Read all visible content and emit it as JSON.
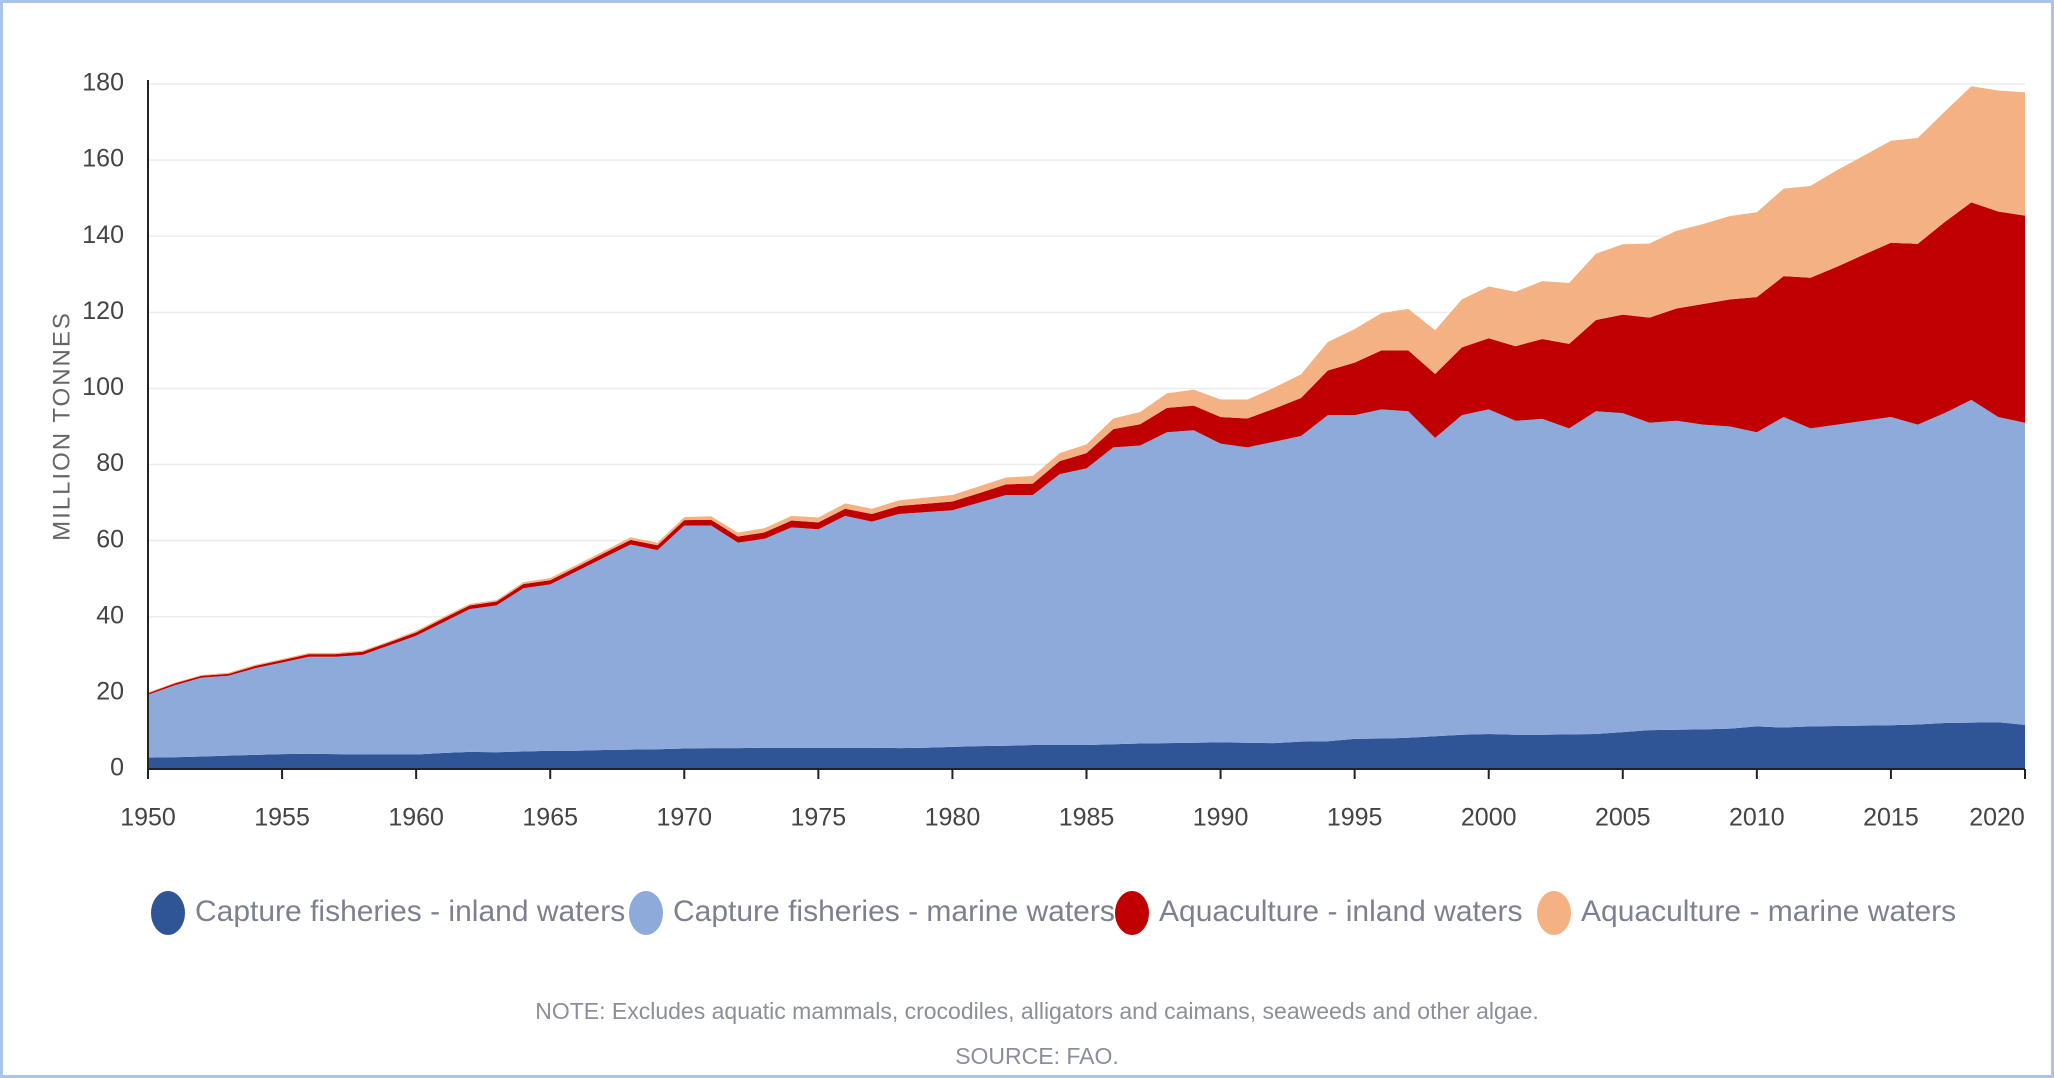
{
  "chart_data": {
    "type": "stacked_area",
    "y_label": "MILLION TONNES",
    "note": "NOTE: Excludes aquatic mammals, crocodiles, alligators and caimans, seaweeds and other algae.",
    "source": "SOURCE: FAO.",
    "x": [
      1950,
      1951,
      1952,
      1953,
      1954,
      1955,
      1956,
      1957,
      1958,
      1959,
      1960,
      1961,
      1962,
      1963,
      1964,
      1965,
      1966,
      1967,
      1968,
      1969,
      1970,
      1971,
      1972,
      1973,
      1974,
      1975,
      1976,
      1977,
      1978,
      1979,
      1980,
      1981,
      1982,
      1983,
      1984,
      1985,
      1986,
      1987,
      1988,
      1989,
      1990,
      1991,
      1992,
      1993,
      1994,
      1995,
      1996,
      1997,
      1998,
      1999,
      2000,
      2001,
      2002,
      2003,
      2004,
      2005,
      2006,
      2007,
      2008,
      2009,
      2010,
      2011,
      2012,
      2013,
      2014,
      2015,
      2016,
      2017,
      2018,
      2019,
      2020
    ],
    "xlim": [
      1950,
      2020
    ],
    "xticks": [
      1950,
      1955,
      1960,
      1965,
      1970,
      1975,
      1980,
      1985,
      1990,
      1995,
      2000,
      2005,
      2010,
      2015,
      2020
    ],
    "ylim": [
      0,
      180
    ],
    "yticks": [
      0,
      20,
      40,
      60,
      80,
      100,
      120,
      140,
      160,
      180
    ],
    "grid": true,
    "series": [
      {
        "name": "Capture fisheries - inland waters",
        "color": "#2f5597",
        "values": [
          3.0,
          3.1,
          3.3,
          3.5,
          3.7,
          3.9,
          4.0,
          3.9,
          3.8,
          3.8,
          3.8,
          4.2,
          4.5,
          4.4,
          4.6,
          4.8,
          4.8,
          5.0,
          5.1,
          5.2,
          5.4,
          5.5,
          5.5,
          5.6,
          5.6,
          5.6,
          5.6,
          5.6,
          5.5,
          5.6,
          5.8,
          6.0,
          6.1,
          6.3,
          6.3,
          6.3,
          6.5,
          6.7,
          6.8,
          6.9,
          7.0,
          6.9,
          6.8,
          7.2,
          7.3,
          7.9,
          8.0,
          8.2,
          8.6,
          9.0,
          9.2,
          9.0,
          9.0,
          9.1,
          9.2,
          9.7,
          10.2,
          10.3,
          10.4,
          10.6,
          11.2,
          10.9,
          11.2,
          11.3,
          11.4,
          11.5,
          11.7,
          12.1,
          12.2,
          12.3,
          11.6
        ]
      },
      {
        "name": "Capture fisheries - marine waters",
        "color": "#8eaadb",
        "values": [
          16.5,
          18.9,
          20.7,
          21.0,
          22.8,
          24.1,
          25.5,
          25.6,
          26.2,
          28.7,
          31.2,
          34.3,
          37.5,
          38.6,
          42.9,
          43.7,
          47.2,
          50.5,
          53.9,
          52.3,
          58.6,
          58.5,
          54.0,
          54.9,
          57.9,
          57.4,
          60.9,
          59.4,
          61.5,
          61.9,
          62.2,
          64.0,
          65.9,
          65.7,
          71.2,
          72.7,
          78.0,
          78.3,
          81.7,
          82.1,
          78.5,
          77.6,
          79.2,
          80.3,
          85.7,
          85.1,
          86.5,
          85.8,
          78.4,
          84.0,
          85.3,
          82.5,
          83.0,
          80.4,
          84.8,
          83.8,
          80.8,
          81.2,
          80.1,
          79.4,
          77.3,
          81.6,
          78.3,
          79.2,
          80.1,
          81.0,
          78.8,
          81.4,
          84.8,
          80.2,
          79.4
        ]
      },
      {
        "name": "Aquaculture - inland waters",
        "color": "#c00000",
        "values": [
          0.4,
          0.5,
          0.5,
          0.5,
          0.6,
          0.6,
          0.7,
          0.7,
          0.8,
          0.8,
          0.9,
          1.0,
          1.0,
          1.0,
          1.1,
          1.1,
          1.1,
          1.2,
          1.2,
          1.3,
          1.4,
          1.5,
          1.6,
          1.7,
          1.8,
          1.8,
          1.9,
          2.0,
          2.1,
          2.2,
          2.3,
          2.5,
          2.8,
          3.0,
          3.4,
          4.0,
          4.8,
          5.6,
          6.4,
          6.5,
          7.0,
          7.6,
          8.7,
          10.0,
          11.7,
          13.8,
          15.5,
          16.0,
          16.8,
          17.8,
          18.7,
          19.6,
          21.0,
          22.2,
          24.0,
          25.9,
          27.6,
          29.5,
          31.7,
          33.4,
          35.5,
          37.0,
          39.6,
          41.5,
          43.7,
          45.8,
          47.5,
          50.2,
          51.9,
          54.0,
          54.4
        ]
      },
      {
        "name": "Aquaculture - marine waters",
        "color": "#f4b183",
        "values": [
          0.2,
          0.2,
          0.2,
          0.3,
          0.3,
          0.3,
          0.3,
          0.3,
          0.3,
          0.3,
          0.4,
          0.4,
          0.4,
          0.4,
          0.5,
          0.6,
          0.6,
          0.6,
          0.7,
          0.7,
          0.8,
          0.9,
          1.0,
          1.1,
          1.2,
          1.3,
          1.4,
          1.4,
          1.5,
          1.6,
          1.7,
          1.8,
          1.8,
          2.0,
          2.1,
          2.3,
          2.8,
          3.2,
          3.8,
          4.2,
          4.6,
          5.0,
          5.5,
          6.2,
          7.5,
          8.8,
          9.8,
          10.9,
          11.5,
          12.6,
          13.6,
          14.3,
          15.2,
          16.0,
          17.4,
          18.5,
          19.5,
          20.4,
          21.0,
          21.9,
          22.3,
          23.0,
          24.1,
          25.4,
          26.0,
          26.8,
          27.8,
          29.0,
          30.5,
          31.8,
          32.4
        ]
      }
    ]
  }
}
